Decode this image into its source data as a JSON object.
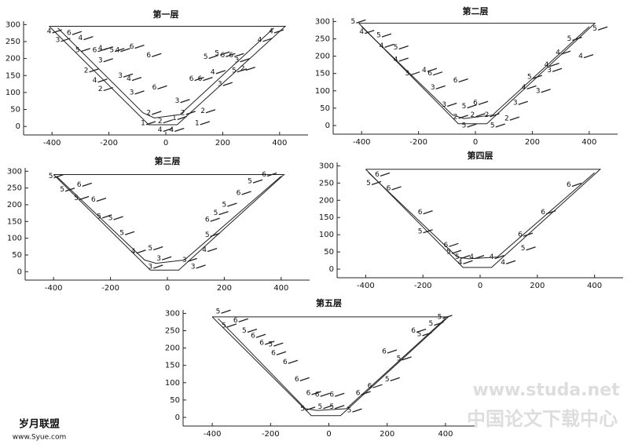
{
  "panels": [
    {
      "title": "第一层",
      "xlim": [
        -500,
        500
      ],
      "ylim": [
        -25,
        310
      ],
      "xticks": [
        -400,
        -200,
        0,
        200,
        400
      ],
      "yticks": [
        0,
        50,
        100,
        150,
        200,
        250,
        300
      ],
      "outline": {
        "x": [
          -410,
          -60,
          40,
          420,
          -410
        ],
        "y": [
          295,
          5,
          5,
          295,
          295
        ]
      },
      "inner": {
        "x": [
          -380,
          -80,
          -40,
          50,
          380
        ],
        "y": [
          290,
          40,
          25,
          35,
          290
        ]
      },
      "labels": [
        [
          "4",
          -410,
          280
        ],
        [
          "3",
          -380,
          255
        ],
        [
          "6",
          -340,
          275
        ],
        [
          "4",
          -300,
          260
        ],
        [
          "5",
          -310,
          225
        ],
        [
          "6",
          -250,
          225
        ],
        [
          "4",
          -230,
          230
        ],
        [
          "5",
          -190,
          225
        ],
        [
          "4",
          -170,
          225
        ],
        [
          "2",
          -280,
          165
        ],
        [
          "3",
          -230,
          195
        ],
        [
          "4",
          -250,
          135
        ],
        [
          "2",
          -230,
          110
        ],
        [
          "3",
          -160,
          150
        ],
        [
          "4",
          -130,
          140
        ],
        [
          "6",
          -120,
          235
        ],
        [
          "6",
          -60,
          210
        ],
        [
          "6",
          -40,
          115
        ],
        [
          "3",
          -120,
          100
        ],
        [
          "2",
          -60,
          40
        ],
        [
          "1",
          -80,
          10
        ],
        [
          "2",
          -20,
          15
        ],
        [
          "4",
          -20,
          -10
        ],
        [
          "4",
          20,
          -10
        ],
        [
          "1",
          30,
          25
        ],
        [
          "3",
          40,
          75
        ],
        [
          "2",
          60,
          40
        ],
        [
          "1",
          110,
          10
        ],
        [
          "2",
          130,
          45
        ],
        [
          "6",
          90,
          140
        ],
        [
          "5",
          140,
          205
        ],
        [
          "6",
          120,
          140
        ],
        [
          "4",
          165,
          160
        ],
        [
          "3",
          190,
          125
        ],
        [
          "6",
          230,
          210
        ],
        [
          "5",
          240,
          165
        ],
        [
          "3",
          250,
          195
        ],
        [
          "2",
          270,
          170
        ],
        [
          "4",
          330,
          255
        ],
        [
          "4",
          370,
          280
        ],
        [
          "6",
          200,
          210
        ],
        [
          "5",
          180,
          215
        ]
      ]
    },
    {
      "title": "第二层",
      "xlim": [
        -500,
        500
      ],
      "ylim": [
        -25,
        310
      ],
      "xticks": [
        -400,
        -200,
        0,
        200,
        400
      ],
      "yticks": [
        0,
        50,
        100,
        150,
        200,
        250,
        300
      ],
      "outline": {
        "x": [
          -410,
          -60,
          40,
          420,
          -410
        ],
        "y": [
          295,
          5,
          5,
          295,
          295
        ]
      },
      "inner": {
        "x": [
          -400,
          -80,
          -40,
          60,
          400
        ],
        "y": [
          285,
          30,
          20,
          30,
          285
        ]
      },
      "labels": [
        [
          "5",
          -430,
          300
        ],
        [
          "4",
          -400,
          270
        ],
        [
          "5",
          -340,
          260
        ],
        [
          "4",
          -330,
          230
        ],
        [
          "5",
          -280,
          225
        ],
        [
          "4",
          -280,
          190
        ],
        [
          "3",
          -240,
          150
        ],
        [
          "4",
          -180,
          160
        ],
        [
          "3",
          -150,
          110
        ],
        [
          "6",
          -160,
          150
        ],
        [
          "3",
          -110,
          60
        ],
        [
          "6",
          -70,
          130
        ],
        [
          "5",
          -40,
          55
        ],
        [
          "6",
          0,
          65
        ],
        [
          "2",
          -70,
          25
        ],
        [
          "2",
          -10,
          30
        ],
        [
          "2",
          40,
          30
        ],
        [
          "2",
          110,
          20
        ],
        [
          "5",
          -40,
          0
        ],
        [
          "5",
          60,
          0
        ],
        [
          "3",
          140,
          65
        ],
        [
          "4",
          170,
          110
        ],
        [
          "3",
          220,
          100
        ],
        [
          "5",
          190,
          140
        ],
        [
          "4",
          250,
          175
        ],
        [
          "3",
          260,
          160
        ],
        [
          "4",
          290,
          210
        ],
        [
          "5",
          330,
          250
        ],
        [
          "4",
          370,
          200
        ],
        [
          "5",
          420,
          280
        ]
      ]
    },
    {
      "title": "第三层",
      "xlim": [
        -500,
        500
      ],
      "ylim": [
        -25,
        310
      ],
      "xticks": [
        -400,
        -200,
        0,
        200,
        400
      ],
      "yticks": [
        0,
        50,
        100,
        150,
        200,
        250,
        300
      ],
      "outline": {
        "x": [
          -400,
          -60,
          40,
          410,
          -400
        ],
        "y": [
          290,
          5,
          5,
          290,
          290
        ]
      },
      "inner": {
        "x": [
          -390,
          -80,
          -40,
          60,
          400
        ],
        "y": [
          285,
          35,
          25,
          35,
          285
        ]
      },
      "labels": [
        [
          "5",
          -410,
          285
        ],
        [
          "5",
          -370,
          245
        ],
        [
          "6",
          -310,
          260
        ],
        [
          "5",
          -320,
          220
        ],
        [
          "6",
          -260,
          215
        ],
        [
          "5",
          -240,
          165
        ],
        [
          "5",
          -200,
          160
        ],
        [
          "5",
          -160,
          115
        ],
        [
          "4",
          -120,
          60
        ],
        [
          "5",
          -60,
          70
        ],
        [
          "3",
          -30,
          40
        ],
        [
          "3",
          -60,
          15
        ],
        [
          "3",
          60,
          35
        ],
        [
          "3",
          90,
          15
        ],
        [
          "4",
          130,
          65
        ],
        [
          "5",
          140,
          110
        ],
        [
          "6",
          140,
          155
        ],
        [
          "5",
          170,
          175
        ],
        [
          "5",
          200,
          200
        ],
        [
          "6",
          250,
          235
        ],
        [
          "5",
          290,
          270
        ],
        [
          "6",
          340,
          290
        ]
      ]
    },
    {
      "title": "第四层",
      "xlim": [
        -500,
        500
      ],
      "ylim": [
        -25,
        310
      ],
      "xticks": [
        -400,
        -200,
        0,
        200,
        400
      ],
      "yticks": [
        0,
        50,
        100,
        150,
        200,
        250,
        300
      ],
      "outline": {
        "x": [
          -400,
          -60,
          40,
          420,
          -400
        ],
        "y": [
          290,
          5,
          5,
          290,
          290
        ]
      },
      "inner": {
        "x": [
          -390,
          -80,
          -40,
          60,
          400
        ],
        "y": [
          280,
          35,
          30,
          35,
          280
        ]
      },
      "labels": [
        [
          "6",
          -360,
          275
        ],
        [
          "5",
          -390,
          250
        ],
        [
          "6",
          -320,
          235
        ],
        [
          "6",
          -210,
          165
        ],
        [
          "5",
          -210,
          110
        ],
        [
          "6",
          -120,
          70
        ],
        [
          "5",
          -110,
          50
        ],
        [
          "4",
          -70,
          20
        ],
        [
          "4",
          -30,
          35
        ],
        [
          "4",
          40,
          35
        ],
        [
          "4",
          80,
          20
        ],
        [
          "6",
          140,
          100
        ],
        [
          "5",
          150,
          60
        ],
        [
          "6",
          220,
          165
        ],
        [
          "6",
          310,
          245
        ],
        [
          "5",
          -80,
          35
        ]
      ]
    },
    {
      "title": "第五层",
      "xlim": [
        -500,
        500
      ],
      "ylim": [
        -25,
        310
      ],
      "xticks": [
        -400,
        -200,
        0,
        200,
        400
      ],
      "yticks": [
        0,
        50,
        100,
        150,
        200,
        250,
        300
      ],
      "outline": {
        "x": [
          -400,
          -60,
          40,
          410,
          -400
        ],
        "y": [
          290,
          5,
          5,
          290,
          290
        ]
      },
      "inner": {
        "x": [
          -380,
          -80,
          -40,
          60,
          400
        ],
        "y": [
          285,
          25,
          20,
          25,
          285
        ]
      },
      "labels": [
        [
          "5",
          -380,
          305
        ],
        [
          "5",
          -360,
          265
        ],
        [
          "6",
          -320,
          280
        ],
        [
          "5",
          -290,
          250
        ],
        [
          "6",
          -260,
          235
        ],
        [
          "6",
          -230,
          215
        ],
        [
          "5",
          -200,
          210
        ],
        [
          "6",
          -190,
          185
        ],
        [
          "6",
          -150,
          160
        ],
        [
          "6",
          -110,
          110
        ],
        [
          "6",
          -70,
          70
        ],
        [
          "5",
          -90,
          25
        ],
        [
          "6",
          -40,
          65
        ],
        [
          "6",
          10,
          65
        ],
        [
          "5",
          -30,
          30
        ],
        [
          "5",
          10,
          30
        ],
        [
          "5",
          70,
          20
        ],
        [
          "6",
          100,
          70
        ],
        [
          "6",
          140,
          90
        ],
        [
          "5",
          200,
          110
        ],
        [
          "6",
          190,
          190
        ],
        [
          "5",
          240,
          170
        ],
        [
          "6",
          290,
          250
        ],
        [
          "5",
          310,
          240
        ],
        [
          "5",
          380,
          290
        ],
        [
          "5",
          350,
          270
        ]
      ]
    }
  ],
  "watermark": {
    "site": "www.studa.net",
    "name": "中国论文下载中心",
    "left_name": "岁月联盟",
    "left_site": "www.Syue.com"
  }
}
